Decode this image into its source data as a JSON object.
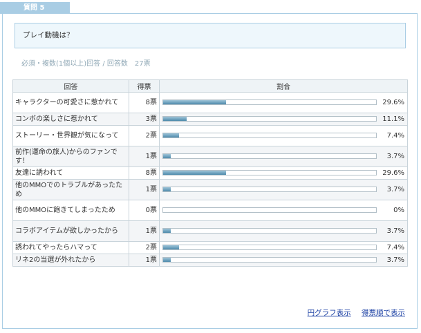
{
  "question_tab": "質問 5",
  "question_text": "プレイ動機は？",
  "meta_text": "必須・複数(1個以上)回答 / 回答数　27票",
  "table": {
    "headers": {
      "answer": "回答",
      "votes": "得票",
      "ratio": "割合"
    },
    "rows": [
      {
        "answer": "キャラクターの可愛さに惹かれて",
        "votes": "8票",
        "percent": "29.6%",
        "value": 29.6
      },
      {
        "answer": "コンボの楽しさに惹かれて",
        "votes": "3票",
        "percent": "11.1%",
        "value": 11.1
      },
      {
        "answer": "ストーリー・世界観が気になって",
        "votes": "2票",
        "percent": "7.4%",
        "value": 7.4
      },
      {
        "answer": "前作(運命の旅人)からのファンです！",
        "votes": "1票",
        "percent": "3.7%",
        "value": 3.7
      },
      {
        "answer": "友達に誘われて",
        "votes": "8票",
        "percent": "29.6%",
        "value": 29.6
      },
      {
        "answer": "他のMMOでのトラブルがあったため",
        "votes": "1票",
        "percent": "3.7%",
        "value": 3.7
      },
      {
        "answer": "他のMMOに飽きてしまったため",
        "votes": "0票",
        "percent": "0%",
        "value": 0
      },
      {
        "answer": "コラボアイテムが欲しかったから",
        "votes": "1票",
        "percent": "3.7%",
        "value": 3.7
      },
      {
        "answer": "誘われてやったらハマって",
        "votes": "2票",
        "percent": "7.4%",
        "value": 7.4
      },
      {
        "answer": "リネ2の当選が外れたから",
        "votes": "1票",
        "percent": "3.7%",
        "value": 3.7
      }
    ]
  },
  "links": {
    "pie_chart": "円グラフ表示",
    "sort_by_votes": "得票順で表示"
  },
  "colors": {
    "accent": "#a9cde4",
    "bar_fill": "#4e8aab",
    "link": "#1a3fa3"
  }
}
